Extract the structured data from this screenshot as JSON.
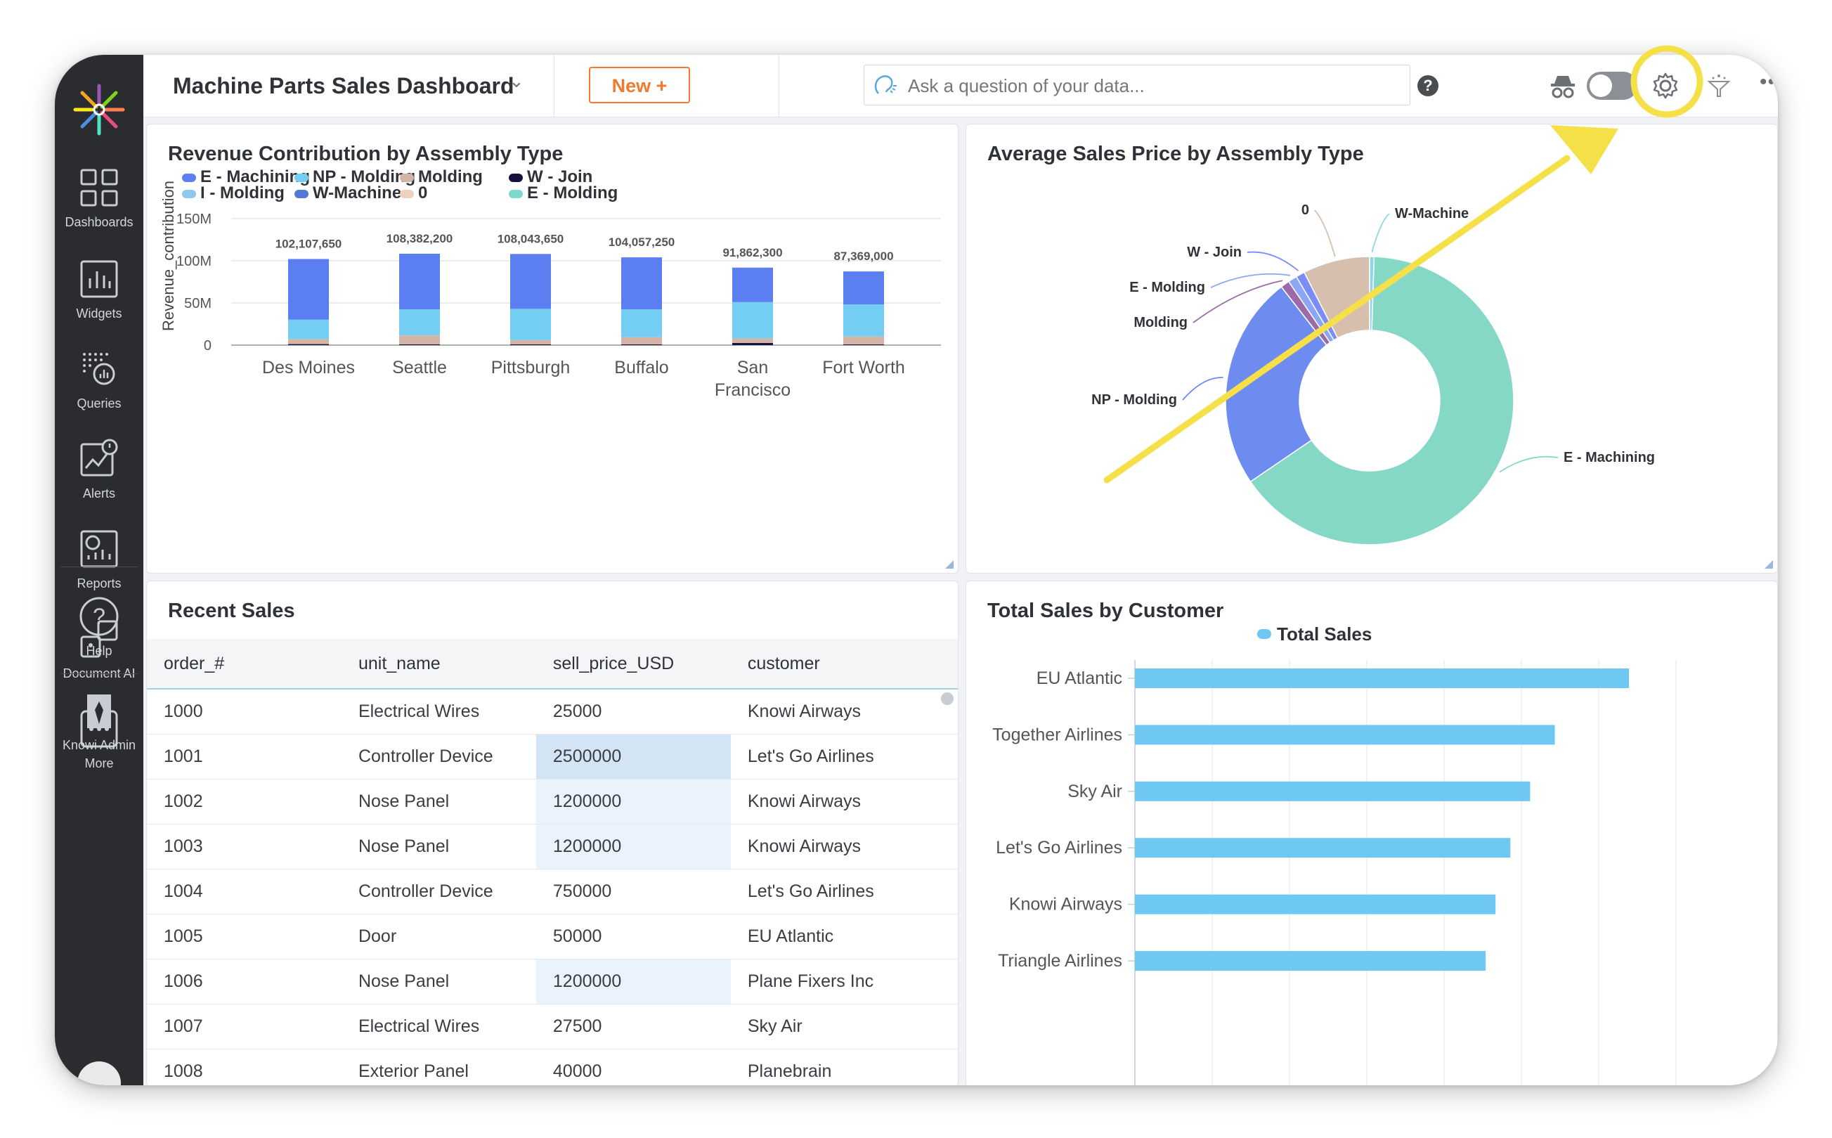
{
  "sidebar": {
    "items": [
      {
        "label": "Dashboards",
        "icon": "dashboards-icon"
      },
      {
        "label": "Widgets",
        "icon": "widgets-icon"
      },
      {
        "label": "Queries",
        "icon": "queries-icon"
      },
      {
        "label": "Alerts",
        "icon": "alerts-icon"
      },
      {
        "label": "Reports",
        "icon": "reports-icon"
      },
      {
        "label": "Document AI",
        "icon": "document-ai-icon"
      },
      {
        "label": "More",
        "icon": "more-icon"
      }
    ],
    "help_label": "Help",
    "admin_label": "Knowi Admin"
  },
  "header": {
    "title": "Machine Parts Sales Dashboard",
    "new_button": "New +",
    "ask_placeholder": "Ask a question of your data...",
    "help_icon_glyph": "?",
    "toggle_on": false
  },
  "colors": {
    "accent_orange": "#f07a2e",
    "highlight_yellow": "#f6e04a",
    "bar_blue": "#6fc8f2"
  },
  "revenue_chart": {
    "title": "Revenue Contribution by Assembly Type",
    "ylabel": "Revenue_contribution",
    "chart_data": {
      "type": "bar",
      "stacked": true,
      "categories": [
        "Des Moines",
        "Seattle",
        "Pittsburgh",
        "Buffalo",
        "San Francisco",
        "Fort Worth"
      ],
      "category_lines": [
        [
          "Des Moines"
        ],
        [
          "Seattle"
        ],
        [
          "Pittsburgh"
        ],
        [
          "Buffalo"
        ],
        [
          "San",
          "Francisco"
        ],
        [
          "Fort Worth"
        ]
      ],
      "totals": [
        "102,107,650",
        "108,382,200",
        "108,043,650",
        "104,057,250",
        "91,862,300",
        "87,369,000"
      ],
      "yticks": [
        "150M",
        "100M",
        "50M",
        "0"
      ],
      "ylim": [
        0,
        150000000
      ],
      "legend": [
        {
          "name": "E - Machining",
          "color": "#5b7ff0"
        },
        {
          "name": "NP - Molding",
          "color": "#74cdf2"
        },
        {
          "name": "Molding",
          "color": "#d5b4a5"
        },
        {
          "name": "W - Join",
          "color": "#14133f"
        },
        {
          "name": "I - Molding",
          "color": "#8ec8ef"
        },
        {
          "name": "W-Machine",
          "color": "#5677d8"
        },
        {
          "name": "0",
          "color": "#eed1bc"
        },
        {
          "name": "E - Molding",
          "color": "#7dd9c9"
        }
      ],
      "series": [
        {
          "name": "W - Join",
          "color": "#14133f",
          "values": [
            1200000,
            1000000,
            1000000,
            900000,
            2500000,
            800000
          ]
        },
        {
          "name": "Molding",
          "color": "#d5b4a5",
          "values": [
            6000000,
            10500000,
            5000000,
            8500000,
            5500000,
            9500000
          ]
        },
        {
          "name": "NP - Molding",
          "color": "#74cdf2",
          "values": [
            23000000,
            31000000,
            37000000,
            33000000,
            43000000,
            38000000
          ]
        },
        {
          "name": "E - Machining",
          "color": "#5b7ff0",
          "values": [
            71907650,
            65882200,
            65043650,
            61657250,
            40862300,
            39069000
          ]
        }
      ]
    }
  },
  "donut_chart": {
    "title": "Average Sales Price by Assembly Type",
    "chart_data": {
      "type": "pie",
      "donut": true,
      "slices": [
        {
          "label": "W-Machine",
          "value": 0.5,
          "color": "#8fd4e8"
        },
        {
          "label": "E - Machining",
          "value": 65,
          "color": "#86d8c6"
        },
        {
          "label": "NP - Molding",
          "value": 24,
          "color": "#6e8cf0"
        },
        {
          "label": "Molding",
          "value": 1.0,
          "color": "#9c6aa8"
        },
        {
          "label": "E - Molding",
          "value": 1.0,
          "color": "#8aa6f5"
        },
        {
          "label": "W - Join",
          "value": 1.0,
          "color": "#7b8cf8"
        },
        {
          "label": "0",
          "value": 7.5,
          "color": "#d7bfae"
        }
      ]
    }
  },
  "recent_sales": {
    "title": "Recent Sales",
    "columns": [
      "order_#",
      "unit_name",
      "sell_price_USD",
      "customer"
    ],
    "rows": [
      [
        "1000",
        "Electrical Wires",
        "25000",
        "Knowi Airways"
      ],
      [
        "1001",
        "Controller Device",
        "2500000",
        "Let's Go Airlines"
      ],
      [
        "1002",
        "Nose Panel",
        "1200000",
        "Knowi Airways"
      ],
      [
        "1003",
        "Nose Panel",
        "1200000",
        "Knowi Airways"
      ],
      [
        "1004",
        "Controller Device",
        "750000",
        "Let's Go Airlines"
      ],
      [
        "1005",
        "Door",
        "50000",
        "EU Atlantic"
      ],
      [
        "1006",
        "Nose Panel",
        "1200000",
        "Plane Fixers Inc"
      ],
      [
        "1007",
        "Electrical Wires",
        "27500",
        "Sky Air"
      ],
      [
        "1008",
        "Exterior Panel",
        "40000",
        "Planebrain"
      ]
    ]
  },
  "customer_chart": {
    "title": "Total Sales by Customer",
    "chart_data": {
      "type": "bar",
      "orientation": "horizontal",
      "legend": "Total Sales",
      "categories": [
        "EU Atlantic",
        "Together Airlines",
        "Sky Air",
        "Let's Go Airlines",
        "Knowi Airways",
        "Triangle Airlines"
      ],
      "values": [
        100,
        85,
        80,
        76,
        73,
        71
      ],
      "color": "#6fc8f2"
    }
  }
}
